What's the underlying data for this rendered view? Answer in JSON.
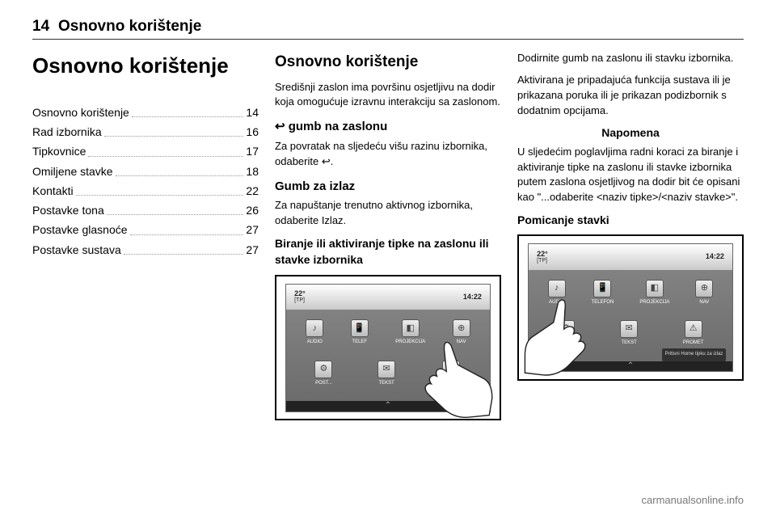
{
  "page_number": "14",
  "header_title": "Osnovno korištenje",
  "col1": {
    "title": "Osnovno korištenje",
    "toc": [
      {
        "label": "Osnovno korištenje",
        "page": "14"
      },
      {
        "label": "Rad izbornika",
        "page": "16"
      },
      {
        "label": "Tipkovnice",
        "page": "17"
      },
      {
        "label": "Omiljene stavke",
        "page": "18"
      },
      {
        "label": "Kontakti",
        "page": "22"
      },
      {
        "label": "Postavke tona",
        "page": "26"
      },
      {
        "label": "Postavke glasnoće",
        "page": "27"
      },
      {
        "label": "Postavke sustava",
        "page": "27"
      }
    ]
  },
  "col2": {
    "title": "Osnovno korištenje",
    "intro": "Središnji zaslon ima površinu osjetljivu na dodir koja omogućuje izravnu interakciju sa zaslonom.",
    "back_heading": "↩ gumb na zaslonu",
    "back_text": "Za povratak na sljedeću višu razinu izbornika, odaberite ↩.",
    "exit_heading": "Gumb za izlaz",
    "exit_text": "Za napuštanje trenutno aktivnog izbornika, odaberite Izlaz.",
    "select_heading": "Biranje ili aktiviranje tipke na zaslonu ili stavke izbornika",
    "screenshot": {
      "temp": "22°",
      "tp": "[TP]",
      "time": "14:22",
      "icons_row1": [
        {
          "glyph": "♪",
          "label": "AUDIO"
        },
        {
          "glyph": "📱",
          "label": "TELEF"
        },
        {
          "glyph": "◧",
          "label": "PROJEKCIJA"
        },
        {
          "glyph": "⊕",
          "label": "NAV"
        }
      ],
      "icons_row2": [
        {
          "glyph": "⚙",
          "label": "POST..."
        },
        {
          "glyph": "✉",
          "label": "TEKST"
        },
        {
          "glyph": "⚠",
          "label": "PROMET"
        }
      ],
      "chevron": "⌃",
      "hand_position": "center"
    }
  },
  "col3": {
    "p1": "Dodirnite gumb na zaslonu ili stavku izbornika.",
    "p2": "Aktivirana je pripadajuća funkcija sustava ili je prikazana poruka ili je prikazan podizbornik s dodatnim opcijama.",
    "note_title": "Napomena",
    "note_text": "U sljedećim poglavljima radni koraci za biranje i aktiviranje tipke na zaslonu ili stavke izbornika putem zaslona osjetljivog na dodir bit će opisani kao \"...odaberite <naziv tipke>/<naziv stavke>\".",
    "move_heading": "Pomicanje stavki",
    "screenshot": {
      "temp": "22°",
      "tp": "[TP]",
      "time": "14:22",
      "icons_row1": [
        {
          "glyph": "♪",
          "label": "AUDIO"
        },
        {
          "glyph": "📱",
          "label": "TELEFON"
        },
        {
          "glyph": "◧",
          "label": "PROJEKCIJA"
        },
        {
          "glyph": "⊕",
          "label": "NAV"
        }
      ],
      "icons_row2": [
        {
          "glyph": "⚙",
          "label": "POST"
        },
        {
          "glyph": "✉",
          "label": "TEKST"
        },
        {
          "glyph": "⚠",
          "label": "PROMET"
        }
      ],
      "hint": "Pritisni Home tipku za izlaz",
      "chevron": "⌃",
      "hand_position": "left"
    }
  },
  "footer_url": "carmanualsonline.info",
  "colors": {
    "text": "#000000",
    "muted": "#777777",
    "border": "#333333"
  }
}
